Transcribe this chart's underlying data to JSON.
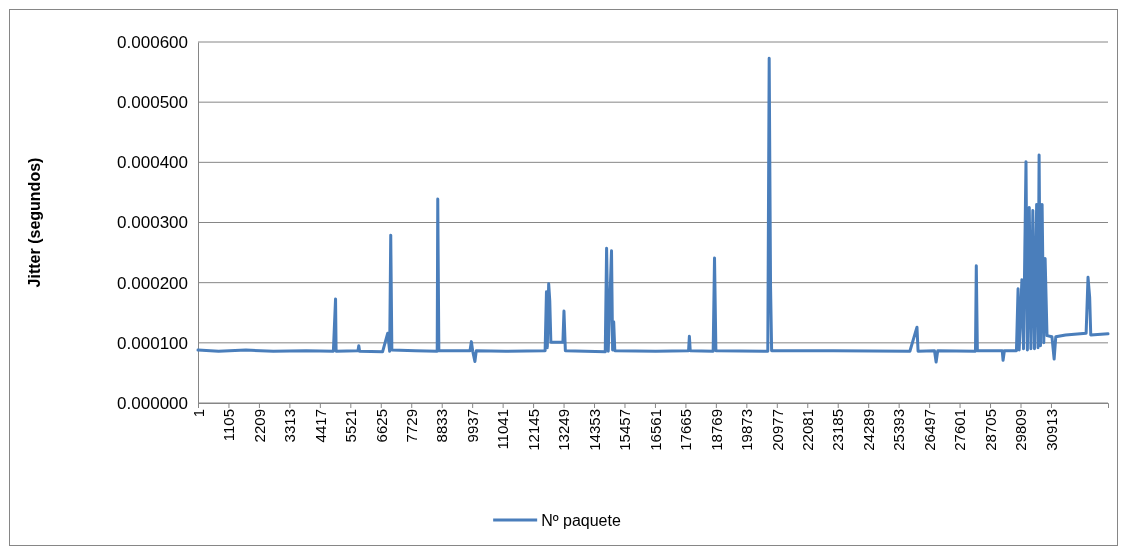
{
  "chart_data": {
    "type": "line",
    "ylabel": "Jitter (segundos)",
    "grid": "y",
    "legend": "bottom",
    "marker": "none",
    "line_style": "solid",
    "xlim": [
      1,
      32980
    ],
    "xticks": [
      1,
      1105,
      2209,
      3313,
      4417,
      5521,
      6625,
      7729,
      8833,
      9937,
      11041,
      12145,
      13249,
      14353,
      15457,
      16561,
      17665,
      18769,
      19873,
      20977,
      22081,
      23185,
      24289,
      25393,
      26497,
      27601,
      28705,
      29809,
      30913
    ],
    "ylim": [
      0,
      0.0006
    ],
    "yticks": [
      {
        "value": 0,
        "label": "0.000000"
      },
      {
        "value": 0.0001,
        "label": "0.000100"
      },
      {
        "value": 0.0002,
        "label": "0.000200"
      },
      {
        "value": 0.0003,
        "label": "0.000300"
      },
      {
        "value": 0.0004,
        "label": "0.000400"
      },
      {
        "value": 0.0005,
        "label": "0.000500"
      },
      {
        "value": 0.0006,
        "label": "0.000600"
      }
    ],
    "x": [
      1,
      748,
      1738,
      2729,
      3917,
      4907,
      4986,
      5006,
      5798,
      5828,
      5857,
      6689,
      6877,
      6947,
      6986,
      7026,
      7878,
      8670,
      8690,
      8729,
      9858,
      9908,
      9957,
      10036,
      10086,
      11145,
      12581,
      12630,
      12660,
      12710,
      12749,
      12789,
      13225,
      13264,
      13314,
      14760,
      14809,
      14868,
      14987,
      15027,
      15066,
      15106,
      16591,
      17780,
      17809,
      17839,
      18671,
      18720,
      18770,
      20651,
      20701,
      20750,
      20790,
      23027,
      25800,
      26057,
      26097,
      26691,
      26751,
      26810,
      28177,
      28207,
      28246,
      29147,
      29177,
      29226,
      29662,
      29721,
      29761,
      29860,
      29919,
      30008,
      30058,
      30127,
      30186,
      30256,
      30315,
      30394,
      30444,
      30483,
      30533,
      30592,
      30652,
      30701,
      30770,
      30949,
      31028,
      31087,
      31444,
      32187,
      32256,
      32316,
      32355,
      32980
    ],
    "series": [
      {
        "name": "Nº paquete",
        "color": "#4a7ebb",
        "values": [
          8.8e-05,
          8.6e-05,
          8.8e-05,
          8.6e-05,
          8.7e-05,
          8.6e-05,
          0.000173,
          8.6e-05,
          8.7e-05,
          9.5e-05,
          8.6e-05,
          8.5e-05,
          0.000116,
          8.6e-05,
          0.000279,
          8.8e-05,
          8.7e-05,
          8.6e-05,
          0.000339,
          8.7e-05,
          8.7e-05,
          0.000102,
          8.6e-05,
          6.9e-05,
          8.7e-05,
          8.6e-05,
          8.7e-05,
          0.000185,
          9.2e-05,
          0.000198,
          0.00017,
          0.000101,
          0.000101,
          0.000153,
          8.7e-05,
          8.5e-05,
          0.000257,
          8.6e-05,
          0.000253,
          8.8e-05,
          0.000135,
          8.7e-05,
          8.6e-05,
          8.7e-05,
          0.000111,
          8.7e-05,
          8.6e-05,
          0.000241,
          8.7e-05,
          8.6e-05,
          0.000573,
          0.000195,
          8.7e-05,
          8.7e-05,
          8.6e-05,
          0.000126,
          8.6e-05,
          8.7e-05,
          6.8e-05,
          8.7e-05,
          8.6e-05,
          0.000228,
          8.7e-05,
          8.7e-05,
          7.1e-05,
          8.7e-05,
          8.7e-05,
          0.00019,
          8.8e-05,
          0.000205,
          9e-05,
          0.000401,
          8.8e-05,
          0.000325,
          9e-05,
          0.00032,
          9e-05,
          0.00033,
          9.2e-05,
          0.000412,
          9.5e-05,
          0.00033,
          0.0001,
          0.00024,
          0.000112,
          0.00011,
          7.3e-05,
          0.00011,
          0.000113,
          0.000116,
          0.000209,
          0.000175,
          0.000113,
          0.000115
        ]
      }
    ]
  }
}
